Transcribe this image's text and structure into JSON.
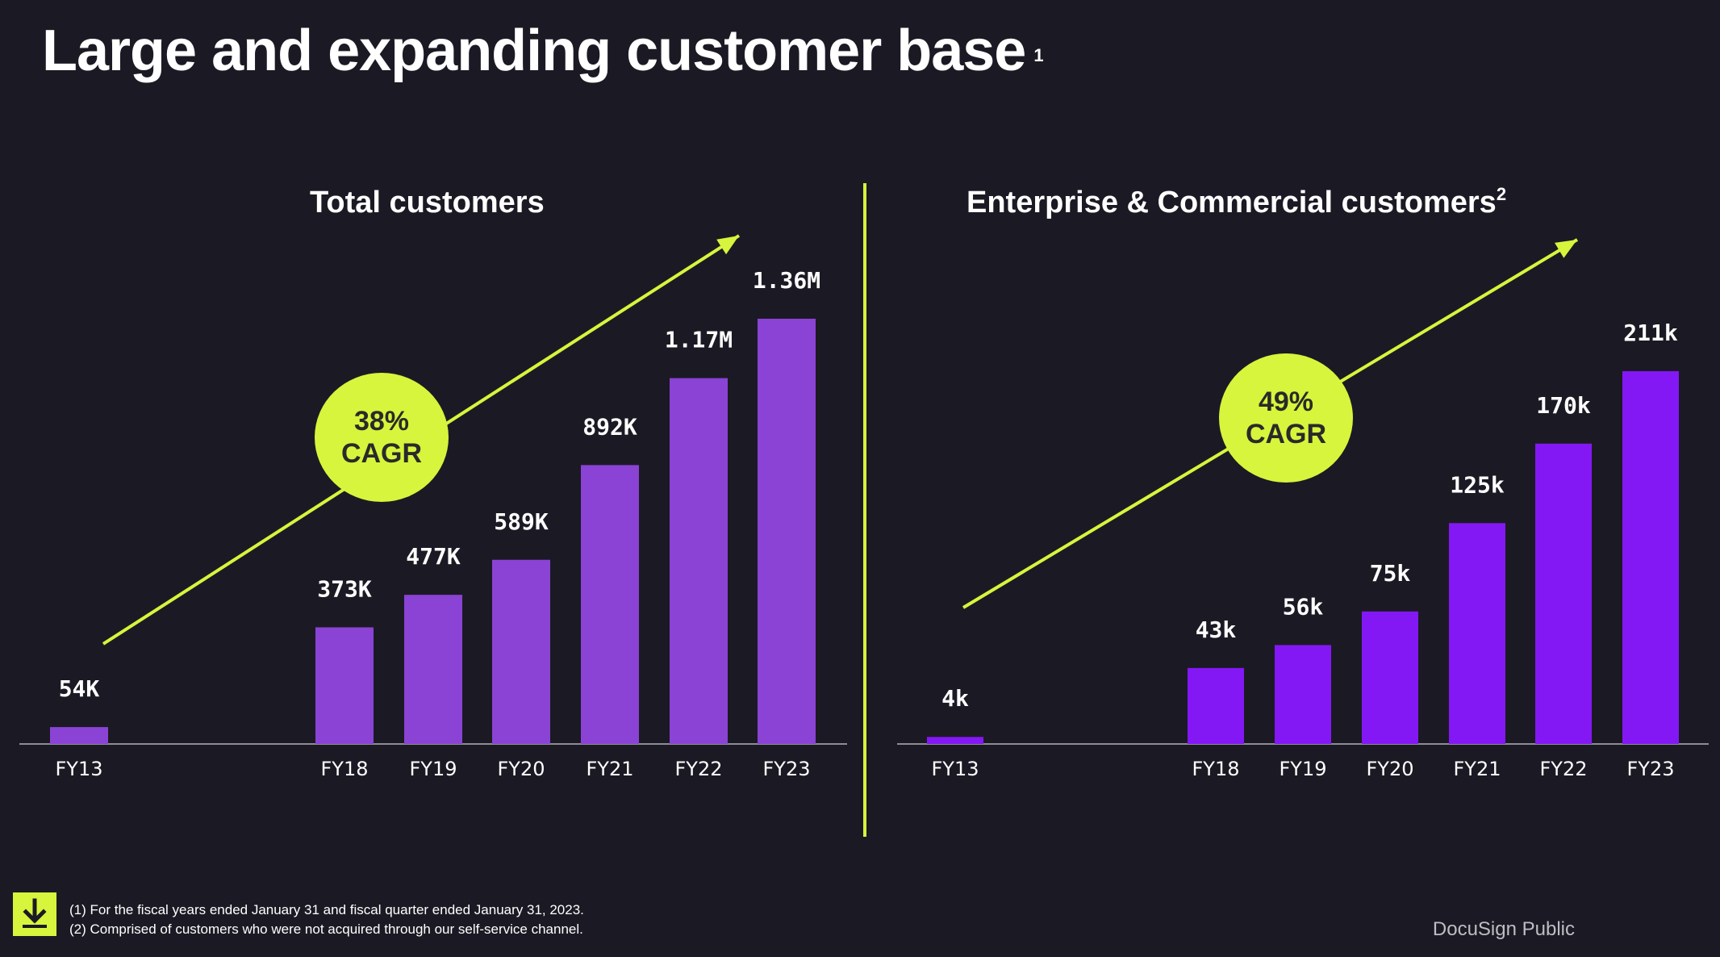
{
  "title": "Large and expanding customer base",
  "title_footnote": "1",
  "colors": {
    "background": "#1b1a24",
    "accent": "#d7f53c",
    "bar_total": "#8a43d4",
    "bar_enterprise": "#8418f4"
  },
  "chart_data": [
    {
      "type": "bar",
      "title": "Total customers",
      "categories": [
        "FY13",
        "FY18",
        "FY19",
        "FY20",
        "FY21",
        "FY22",
        "FY23"
      ],
      "values": [
        54000,
        373000,
        477000,
        589000,
        892000,
        1170000,
        1360000
      ],
      "data_labels": [
        "54K",
        "373K",
        "477K",
        "589K",
        "892K",
        "1.17M",
        "1.36M"
      ],
      "ylim": [
        0,
        1360000
      ],
      "grid": false,
      "badge": {
        "line1": "38%",
        "line2": "CAGR"
      }
    },
    {
      "type": "bar",
      "title": "Enterprise & Commercial customers",
      "title_footnote": "2",
      "categories": [
        "FY13",
        "FY18",
        "FY19",
        "FY20",
        "FY21",
        "FY22",
        "FY23"
      ],
      "values": [
        4000,
        43000,
        56000,
        75000,
        125000,
        170000,
        211000
      ],
      "data_labels": [
        "4k",
        "43k",
        "56k",
        "75k",
        "125k",
        "170k",
        "211k"
      ],
      "ylim": [
        0,
        211000
      ],
      "grid": false,
      "badge": {
        "line1": "49%",
        "line2": "CAGR"
      }
    }
  ],
  "footnotes": [
    "(1)  For the fiscal years ended January 31 and fiscal quarter ended January  31, 2023.",
    "(2)  Comprised of customers who were not acquired through our self-service channel."
  ],
  "download_icon": "download-icon",
  "classification": "DocuSign Public"
}
